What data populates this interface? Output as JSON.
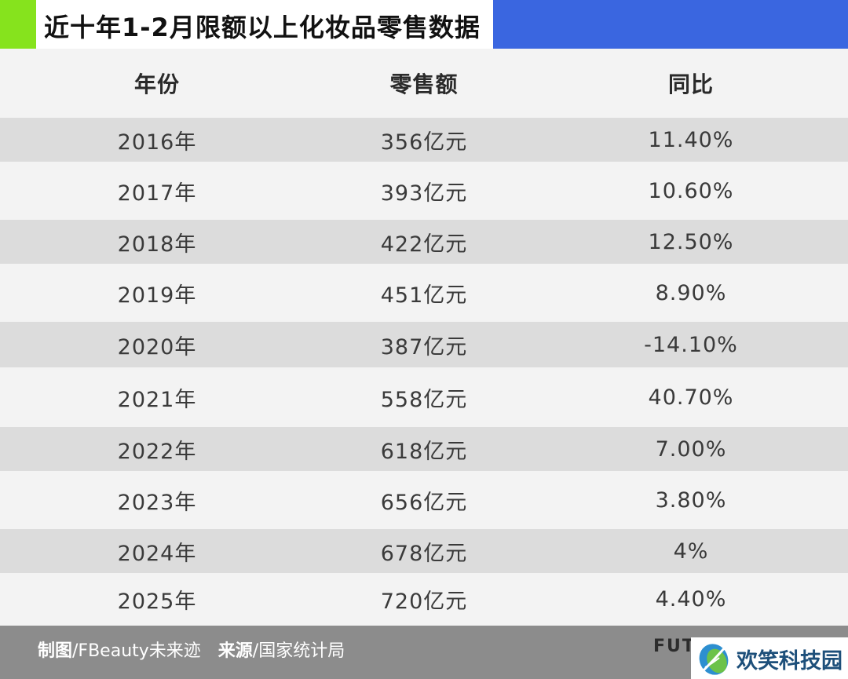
{
  "header": {
    "title": "近十年1-2月限额以上化妆品零售数据",
    "colors": {
      "green": "#86e31d",
      "blue": "#3a66e0"
    }
  },
  "table": {
    "columns": [
      "年份",
      "零售额",
      "同比"
    ],
    "rows": [
      [
        "2016年",
        "356亿元",
        "11.40%"
      ],
      [
        "2017年",
        "393亿元",
        "10.60%"
      ],
      [
        "2018年",
        "422亿元",
        "12.50%"
      ],
      [
        "2019年",
        "451亿元",
        "8.90%"
      ],
      [
        "2020年",
        "387亿元",
        "-14.10%"
      ],
      [
        "2021年",
        "558亿元",
        "40.70%"
      ],
      [
        "2022年",
        "618亿元",
        "7.00%"
      ],
      [
        "2023年",
        "656亿元",
        "3.80%"
      ],
      [
        "2024年",
        "678亿元",
        "4%"
      ],
      [
        "2025年",
        "720亿元",
        "4.40%"
      ]
    ],
    "colors": {
      "row_light": "#f3f3f3",
      "row_dark": "#dcdcdc"
    }
  },
  "footer": {
    "made_label": "制图",
    "made_value": "/FBeauty未来迹",
    "source_label": "来源",
    "source_value": "/国家统计局",
    "fut_text": "FUT",
    "bg_color": "#8c8c8c"
  },
  "watermark": {
    "text": "欢笑科技园",
    "icon": "leaf-logo-icon"
  }
}
